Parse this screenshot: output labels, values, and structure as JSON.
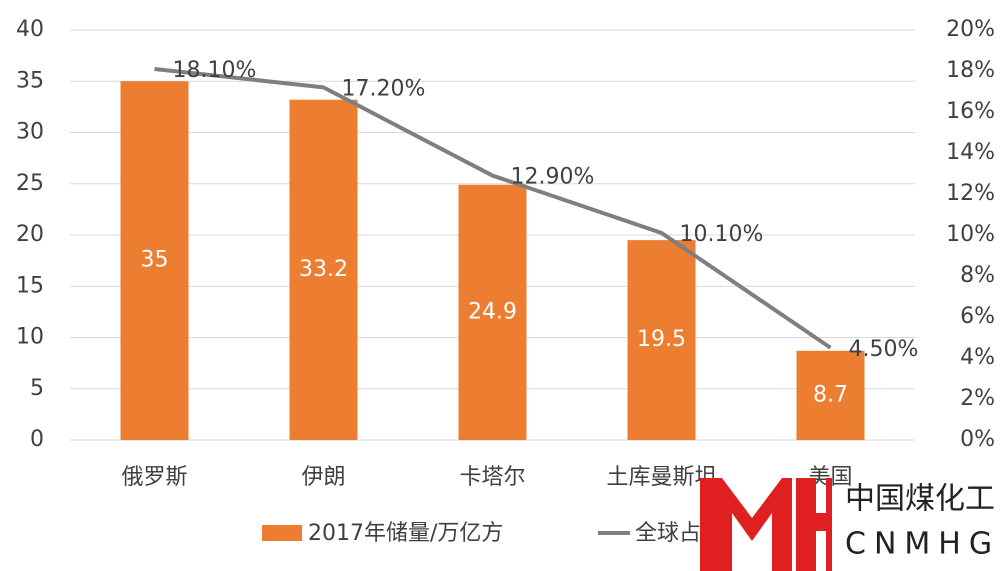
{
  "chart_data": {
    "type": "bar-line",
    "categories": [
      "俄罗斯",
      "伊朗",
      "卡塔尔",
      "土库曼斯坦",
      "美国"
    ],
    "series": [
      {
        "name": "2017年储量/万亿方",
        "color": "#ed7d31",
        "type": "bar",
        "values": [
          35,
          33.2,
          24.9,
          19.5,
          8.7
        ]
      },
      {
        "name": "全球占比",
        "color": "#7f7f7f",
        "type": "line",
        "axis": "y2",
        "values": [
          18.1,
          17.2,
          12.9,
          10.1,
          4.5
        ],
        "value_labels": [
          "18.10%",
          "17.20%",
          "12.90%",
          "10.10%",
          "4.50%"
        ]
      }
    ],
    "ylim": [
      0,
      40
    ],
    "yticks": [
      0,
      5,
      10,
      15,
      20,
      25,
      30,
      35,
      40
    ],
    "y2lim": [
      0,
      20
    ],
    "y2ticks": [
      {
        "value": 0,
        "label": "0%"
      },
      {
        "value": 2,
        "label": "2%"
      },
      {
        "value": 4,
        "label": "4%"
      },
      {
        "value": 6,
        "label": "6%"
      },
      {
        "value": 8,
        "label": "8%"
      },
      {
        "value": 10,
        "label": "10%"
      },
      {
        "value": 12,
        "label": "12%"
      },
      {
        "value": 14,
        "label": "14%"
      },
      {
        "value": 16,
        "label": "16%"
      },
      {
        "value": 18,
        "label": "18%"
      },
      {
        "value": 20,
        "label": "20%"
      }
    ],
    "grid": true,
    "legend": "bottom"
  },
  "watermark": {
    "title": "中国煤化工",
    "subtitle": "CNMHG"
  }
}
